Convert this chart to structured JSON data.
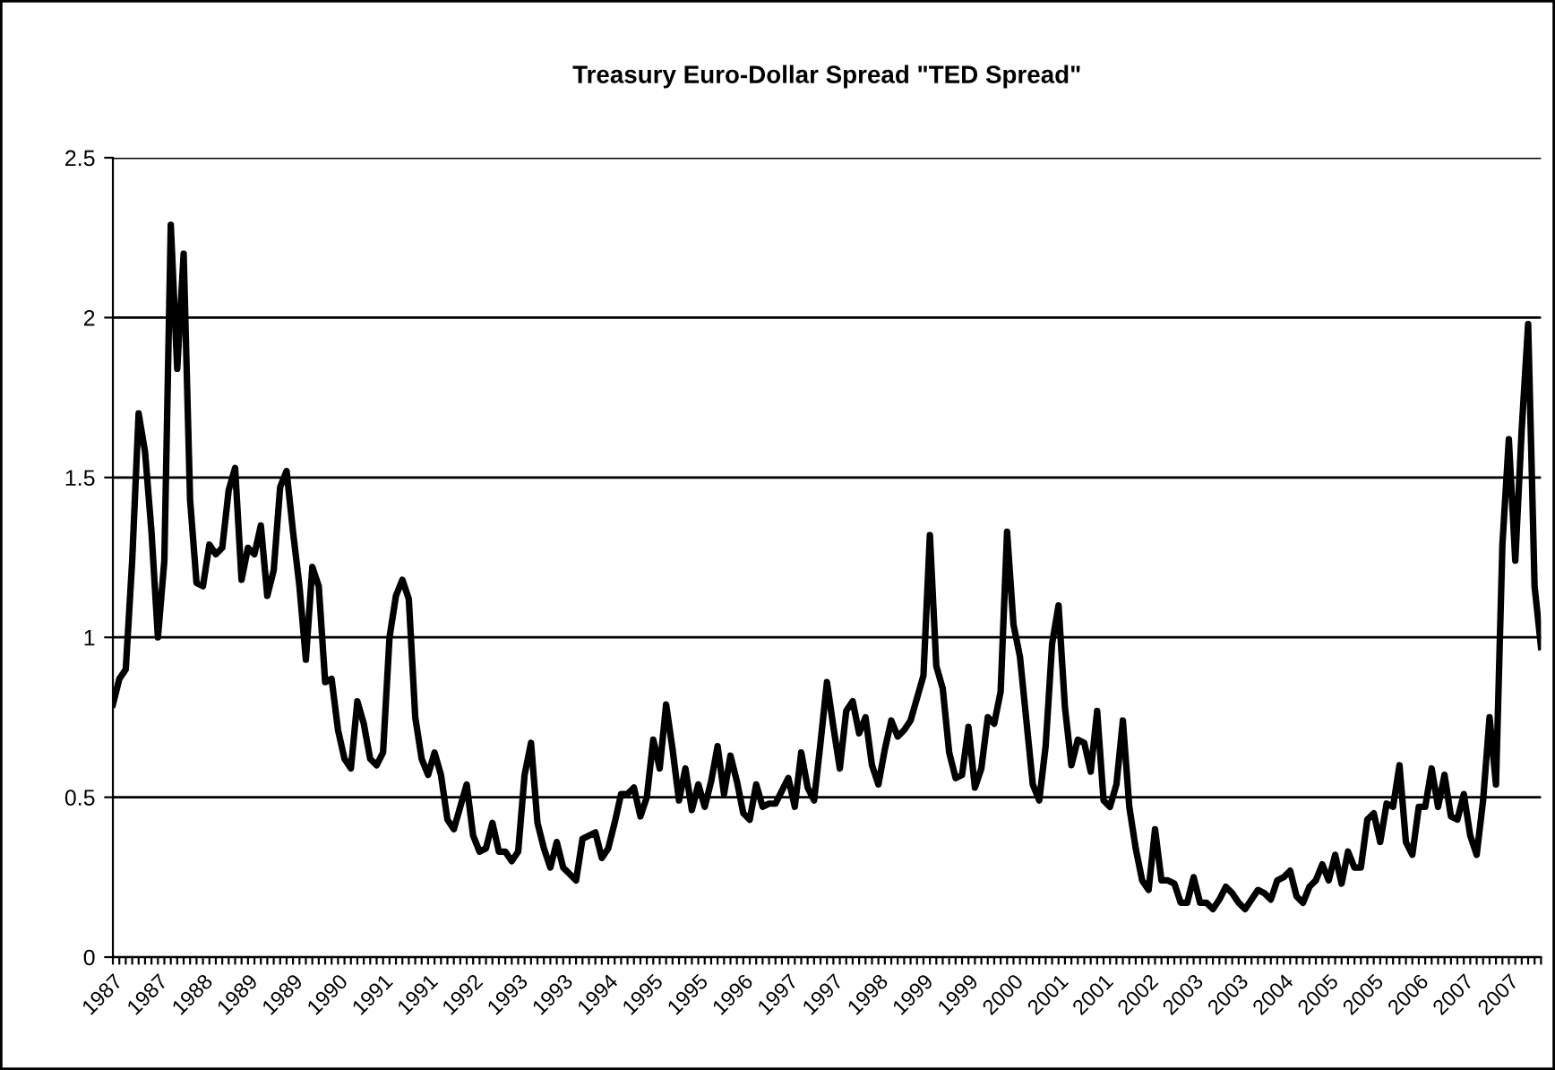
{
  "chart_data": {
    "type": "line",
    "title": "Treasury Euro-Dollar Spread \"TED Spread\"",
    "categories": [
      "1987",
      null,
      null,
      null,
      null,
      null,
      null,
      "1987",
      null,
      null,
      null,
      null,
      null,
      null,
      "1988",
      null,
      null,
      null,
      null,
      null,
      null,
      "1989",
      null,
      null,
      null,
      null,
      null,
      null,
      "1989",
      null,
      null,
      null,
      null,
      null,
      null,
      "1990",
      null,
      null,
      null,
      null,
      null,
      null,
      "1991",
      null,
      null,
      null,
      null,
      null,
      null,
      "1991",
      null,
      null,
      null,
      null,
      null,
      null,
      "1992",
      null,
      null,
      null,
      null,
      null,
      null,
      "1993",
      null,
      null,
      null,
      null,
      null,
      null,
      "1993",
      null,
      null,
      null,
      null,
      null,
      null,
      "1994",
      null,
      null,
      null,
      null,
      null,
      null,
      "1995",
      null,
      null,
      null,
      null,
      null,
      null,
      "1995",
      null,
      null,
      null,
      null,
      null,
      null,
      "1996",
      null,
      null,
      null,
      null,
      null,
      null,
      "1997",
      null,
      null,
      null,
      null,
      null,
      null,
      "1997",
      null,
      null,
      null,
      null,
      null,
      null,
      "1998",
      null,
      null,
      null,
      null,
      null,
      null,
      "1999",
      null,
      null,
      null,
      null,
      null,
      null,
      "1999",
      null,
      null,
      null,
      null,
      null,
      null,
      "2000",
      null,
      null,
      null,
      null,
      null,
      null,
      "2001",
      null,
      null,
      null,
      null,
      null,
      null,
      "2001",
      null,
      null,
      null,
      null,
      null,
      null,
      "2002",
      null,
      null,
      null,
      null,
      null,
      null,
      "2003",
      null,
      null,
      null,
      null,
      null,
      null,
      "2003",
      null,
      null,
      null,
      null,
      null,
      null,
      "2004",
      null,
      null,
      null,
      null,
      null,
      null,
      "2005",
      null,
      null,
      null,
      null,
      null,
      null,
      "2005",
      null,
      null,
      null,
      null,
      null,
      null,
      "2006",
      null,
      null,
      null,
      null,
      null,
      null,
      "2007",
      null,
      null,
      null,
      null,
      null,
      null,
      "2007",
      null,
      null,
      null,
      null,
      null
    ],
    "series": [
      {
        "color": "#000000",
        "values": [
          0.79,
          0.87,
          0.9,
          1.24,
          1.7,
          1.58,
          1.33,
          1.0,
          1.24,
          2.29,
          1.84,
          2.2,
          1.43,
          1.17,
          1.16,
          1.29,
          1.26,
          1.28,
          1.46,
          1.53,
          1.18,
          1.28,
          1.26,
          1.35,
          1.13,
          1.21,
          1.47,
          1.52,
          1.33,
          1.16,
          0.93,
          1.22,
          1.16,
          0.86,
          0.87,
          0.71,
          0.62,
          0.59,
          0.8,
          0.73,
          0.62,
          0.6,
          0.64,
          1.0,
          1.13,
          1.18,
          1.12,
          0.75,
          0.62,
          0.57,
          0.64,
          0.57,
          0.43,
          0.4,
          0.47,
          0.54,
          0.38,
          0.33,
          0.34,
          0.42,
          0.33,
          0.33,
          0.3,
          0.33,
          0.57,
          0.67,
          0.42,
          0.34,
          0.28,
          0.36,
          0.28,
          0.26,
          0.24,
          0.37,
          0.38,
          0.39,
          0.31,
          0.34,
          0.42,
          0.51,
          0.51,
          0.53,
          0.44,
          0.5,
          0.68,
          0.59,
          0.79,
          0.65,
          0.49,
          0.59,
          0.46,
          0.54,
          0.47,
          0.55,
          0.66,
          0.51,
          0.63,
          0.55,
          0.45,
          0.43,
          0.54,
          0.47,
          0.48,
          0.48,
          0.52,
          0.56,
          0.47,
          0.64,
          0.53,
          0.49,
          0.67,
          0.86,
          0.72,
          0.59,
          0.77,
          0.8,
          0.7,
          0.75,
          0.6,
          0.54,
          0.65,
          0.74,
          0.69,
          0.71,
          0.74,
          0.81,
          0.88,
          1.32,
          0.91,
          0.84,
          0.64,
          0.56,
          0.57,
          0.72,
          0.53,
          0.59,
          0.75,
          0.73,
          0.83,
          1.33,
          1.04,
          0.94,
          0.74,
          0.54,
          0.49,
          0.66,
          0.98,
          1.1,
          0.78,
          0.6,
          0.68,
          0.67,
          0.58,
          0.77,
          0.49,
          0.47,
          0.54,
          0.74,
          0.47,
          0.34,
          0.24,
          0.21,
          0.4,
          0.24,
          0.24,
          0.23,
          0.17,
          0.17,
          0.25,
          0.17,
          0.17,
          0.15,
          0.18,
          0.22,
          0.2,
          0.17,
          0.15,
          0.18,
          0.21,
          0.2,
          0.18,
          0.24,
          0.25,
          0.27,
          0.19,
          0.17,
          0.22,
          0.24,
          0.29,
          0.24,
          0.32,
          0.23,
          0.33,
          0.28,
          0.28,
          0.43,
          0.45,
          0.36,
          0.48,
          0.47,
          0.6,
          0.36,
          0.32,
          0.47,
          0.47,
          0.59,
          0.47,
          0.57,
          0.44,
          0.43,
          0.51,
          0.38,
          0.32,
          0.49,
          0.75,
          0.54,
          1.29,
          1.62,
          1.24,
          1.65,
          1.98,
          1.16,
          0.97
        ]
      }
    ],
    "ylim": [
      0,
      2.5
    ],
    "yticks": [
      0,
      0.5,
      1,
      1.5,
      2,
      2.5
    ],
    "grid": "y",
    "legend": false,
    "marker": "none",
    "line_style": "solid"
  }
}
